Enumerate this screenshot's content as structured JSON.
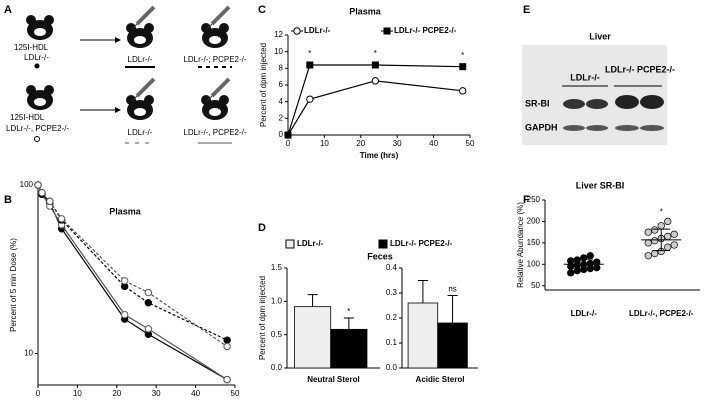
{
  "panels": [
    "A",
    "B",
    "C",
    "D",
    "E",
    "F"
  ],
  "schematic": {
    "rows": [
      {
        "tracer": "125I-HDL",
        "donor": "LDLr-/-",
        "recipients": [
          "LDLr-/-",
          "LDLr-/-; PCPE2-/-"
        ]
      },
      {
        "tracer": "125I-HDL",
        "donor": "LDLr-/-, PCPE2-/-",
        "recipients": [
          "LDLr-/-",
          "LDLr-/-, PCPE2-/-"
        ]
      }
    ]
  },
  "blot": {
    "title": "Liver",
    "lanes": [
      "LDLr-/-",
      "LDLr-/- PCPE2-/-"
    ],
    "bands": [
      "SR-BI",
      "GAPDH"
    ]
  },
  "chart_data": [
    {
      "type": "line",
      "title": "Plasma",
      "x_label": "Time (hr)",
      "y_label": "Percent of  5 min Dose (%)",
      "log_y": true,
      "x": [
        0,
        1,
        3,
        6,
        22,
        28,
        48
      ],
      "xlim": [
        0,
        50
      ],
      "xticks": [
        0,
        10,
        20,
        30,
        40,
        50
      ],
      "ylim": [
        6.5,
        100
      ],
      "yticks": [
        10,
        100
      ],
      "series": [
        {
          "color": "#000000",
          "marker": "filled",
          "dash": false,
          "values": [
            100,
            90,
            78,
            55,
            16,
            13,
            7
          ]
        },
        {
          "color": "#555555",
          "marker": "open",
          "dash": false,
          "values": [
            100,
            88,
            75,
            58,
            17,
            14,
            7
          ]
        },
        {
          "color": "#000000",
          "marker": "filled",
          "dash": true,
          "values": [
            100,
            88,
            80,
            62,
            25,
            20,
            12
          ]
        },
        {
          "color": "#555555",
          "marker": "open",
          "dash": true,
          "values": [
            100,
            90,
            80,
            63,
            27,
            23,
            11
          ]
        }
      ]
    },
    {
      "type": "line",
      "title": "Plasma",
      "x_label": "Time (hrs)",
      "y_label": "Percent of dpm injected",
      "x": [
        0,
        6,
        24,
        48
      ],
      "xlim": [
        0,
        50
      ],
      "xticks": [
        0,
        10,
        20,
        30,
        40,
        50
      ],
      "ylim": [
        0,
        12
      ],
      "yticks": [
        0,
        2,
        4,
        6,
        8,
        10,
        12
      ],
      "series": [
        {
          "name": "LDLr-/-",
          "color": "#000000",
          "marker": "open",
          "dash": false,
          "values": [
            0,
            4.3,
            6.5,
            5.3
          ]
        },
        {
          "name": "LDLr-/- PCPE2-/-",
          "color": "#000000",
          "marker": "square",
          "dash": false,
          "values": [
            0,
            8.4,
            8.4,
            8.2
          ]
        }
      ],
      "annotations": [
        "*",
        "*",
        "*"
      ]
    },
    {
      "type": "bar",
      "title": "Feces",
      "y_label": "Percent of dpm injected",
      "categories": [
        "Neutral Sterol"
      ],
      "ylim": [
        0,
        1.5
      ],
      "yticks": [
        {
          "value": 0,
          "label": "0.0"
        },
        0.5,
        {
          "value": 1,
          "label": "1.0"
        },
        1.5
      ],
      "series": [
        {
          "name": "LDLr-/-",
          "color": "#eeeeee",
          "values": [
            0.92
          ],
          "errors": [
            0.18
          ]
        },
        {
          "name": "LDLr-/- PCPE2-/-",
          "color": "#000000",
          "values": [
            0.58
          ],
          "errors": [
            0.17
          ]
        }
      ],
      "annotations": [
        "*"
      ]
    },
    {
      "type": "bar",
      "categories": [
        "Acidic Sterol"
      ],
      "ylim": [
        0,
        0.4
      ],
      "yticks": [
        {
          "value": 0,
          "label": "0.0"
        },
        0.1,
        0.2,
        0.3,
        0.4
      ],
      "series": [
        {
          "color": "#eeeeee",
          "values": [
            0.26
          ],
          "errors": [
            0.09
          ]
        },
        {
          "color": "#000000",
          "values": [
            0.18
          ],
          "errors": [
            0.11
          ]
        }
      ],
      "annotations": [
        "ns"
      ]
    },
    {
      "type": "strip",
      "title": "Liver SR-BI",
      "y_label": "Relative Abundance (%)",
      "ylim": [
        40,
        250
      ],
      "yticks": [
        50,
        100,
        150,
        200,
        250
      ],
      "groups": [
        {
          "name": "LDLr-/-",
          "color": "#000000",
          "values": [
            80,
            85,
            88,
            90,
            92,
            95,
            98,
            100,
            102,
            105,
            108,
            110,
            115,
            120
          ],
          "mean": 100,
          "sd": 12
        },
        {
          "name": "LDLr-/-, PCPE2-/-",
          "color": "#cccccc",
          "values": [
            120,
            125,
            130,
            140,
            145,
            150,
            155,
            160,
            165,
            170,
            175,
            180,
            190,
            200
          ],
          "mean": 157,
          "sd": 25
        }
      ],
      "annotations": [
        "*"
      ]
    }
  ]
}
